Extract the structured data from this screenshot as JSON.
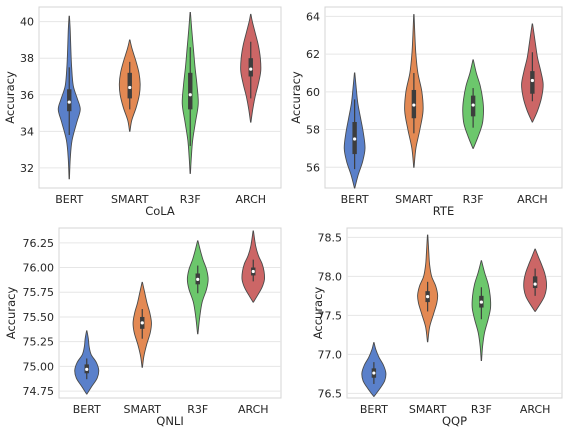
{
  "chart_data": [
    {
      "type": "violin",
      "xlabel": "CoLA",
      "ylabel": "Accuracy",
      "categories": [
        "BERT",
        "SMART",
        "R3F",
        "ARCH"
      ],
      "ylim": [
        30.9,
        40.8
      ],
      "yticks": [
        32,
        34,
        36,
        38,
        40
      ],
      "tick_decimals": 0,
      "grid": true,
      "colors": [
        "#5a80ca",
        "#e38953",
        "#6cc76c",
        "#cc6666"
      ],
      "violins": [
        {
          "min": 31.4,
          "max": 40.3,
          "q1": 35.1,
          "median": 35.6,
          "q3": 36.3,
          "whisker_low": 33.8,
          "whisker_high": 37.5,
          "profile": [
            [
              31.4,
              0.01
            ],
            [
              32.5,
              0.05
            ],
            [
              33.5,
              0.14
            ],
            [
              34.5,
              0.38
            ],
            [
              35.2,
              0.55
            ],
            [
              35.8,
              0.4
            ],
            [
              36.5,
              0.2
            ],
            [
              37.5,
              0.12
            ],
            [
              38.5,
              0.08
            ],
            [
              39.5,
              0.05
            ],
            [
              40.3,
              0.01
            ]
          ]
        },
        {
          "min": 34.0,
          "max": 39.0,
          "q1": 35.8,
          "median": 36.4,
          "q3": 37.2,
          "whisker_low": 35.2,
          "whisker_high": 37.8,
          "profile": [
            [
              34.0,
              0.01
            ],
            [
              34.6,
              0.1
            ],
            [
              35.3,
              0.32
            ],
            [
              36.0,
              0.48
            ],
            [
              36.6,
              0.52
            ],
            [
              37.2,
              0.46
            ],
            [
              37.8,
              0.32
            ],
            [
              38.5,
              0.12
            ],
            [
              39.0,
              0.01
            ]
          ]
        },
        {
          "min": 31.7,
          "max": 40.5,
          "q1": 35.2,
          "median": 36.0,
          "q3": 37.2,
          "whisker_low": 33.2,
          "whisker_high": 38.6,
          "profile": [
            [
              31.7,
              0.01
            ],
            [
              32.5,
              0.05
            ],
            [
              33.5,
              0.12
            ],
            [
              34.5,
              0.26
            ],
            [
              35.5,
              0.4
            ],
            [
              36.5,
              0.34
            ],
            [
              37.5,
              0.24
            ],
            [
              38.5,
              0.16
            ],
            [
              39.5,
              0.08
            ],
            [
              40.5,
              0.01
            ]
          ]
        },
        {
          "min": 34.5,
          "max": 40.4,
          "q1": 37.0,
          "median": 37.4,
          "q3": 38.0,
          "whisker_low": 35.8,
          "whisker_high": 38.9,
          "profile": [
            [
              34.5,
              0.01
            ],
            [
              35.2,
              0.1
            ],
            [
              35.9,
              0.22
            ],
            [
              36.6,
              0.38
            ],
            [
              37.3,
              0.5
            ],
            [
              38.0,
              0.48
            ],
            [
              38.7,
              0.38
            ],
            [
              39.4,
              0.22
            ],
            [
              40.0,
              0.08
            ],
            [
              40.4,
              0.01
            ]
          ]
        }
      ]
    },
    {
      "type": "violin",
      "xlabel": "RTE",
      "ylabel": "Accuracy",
      "categories": [
        "BERT",
        "SMART",
        "R3F",
        "ARCH"
      ],
      "ylim": [
        54.9,
        64.5
      ],
      "yticks": [
        56,
        58,
        60,
        62,
        64
      ],
      "tick_decimals": 0,
      "grid": true,
      "colors": [
        "#5a80ca",
        "#e38953",
        "#6cc76c",
        "#cc6666"
      ],
      "violins": [
        {
          "min": 54.9,
          "max": 61.0,
          "q1": 56.7,
          "median": 57.5,
          "q3": 58.4,
          "whisker_low": 55.9,
          "whisker_high": 59.6,
          "profile": [
            [
              54.9,
              0.01
            ],
            [
              55.6,
              0.18
            ],
            [
              56.3,
              0.4
            ],
            [
              57.0,
              0.52
            ],
            [
              57.8,
              0.44
            ],
            [
              58.6,
              0.3
            ],
            [
              59.4,
              0.16
            ],
            [
              60.2,
              0.08
            ],
            [
              61.0,
              0.01
            ]
          ]
        },
        {
          "min": 56.0,
          "max": 64.1,
          "q1": 58.6,
          "median": 59.3,
          "q3": 60.1,
          "whisker_low": 57.8,
          "whisker_high": 61.0,
          "profile": [
            [
              56.0,
              0.01
            ],
            [
              57.0,
              0.1
            ],
            [
              58.0,
              0.3
            ],
            [
              59.0,
              0.46
            ],
            [
              60.0,
              0.4
            ],
            [
              61.0,
              0.2
            ],
            [
              62.0,
              0.1
            ],
            [
              63.0,
              0.05
            ],
            [
              64.1,
              0.01
            ]
          ]
        },
        {
          "min": 57.0,
          "max": 61.7,
          "q1": 58.7,
          "median": 59.3,
          "q3": 59.8,
          "whisker_low": 58.1,
          "whisker_high": 60.2,
          "profile": [
            [
              57.0,
              0.01
            ],
            [
              57.6,
              0.24
            ],
            [
              58.3,
              0.46
            ],
            [
              59.0,
              0.52
            ],
            [
              59.6,
              0.48
            ],
            [
              60.3,
              0.36
            ],
            [
              61.0,
              0.16
            ],
            [
              61.7,
              0.01
            ]
          ]
        },
        {
          "min": 58.4,
          "max": 63.6,
          "q1": 59.9,
          "median": 60.6,
          "q3": 61.1,
          "whisker_low": 59.5,
          "whisker_high": 62.1,
          "profile": [
            [
              58.4,
              0.01
            ],
            [
              59.0,
              0.26
            ],
            [
              59.7,
              0.46
            ],
            [
              60.4,
              0.54
            ],
            [
              61.1,
              0.42
            ],
            [
              61.8,
              0.26
            ],
            [
              62.5,
              0.16
            ],
            [
              63.1,
              0.08
            ],
            [
              63.6,
              0.01
            ]
          ]
        }
      ]
    },
    {
      "type": "violin",
      "xlabel": "QNLI",
      "ylabel": "Accuracy",
      "categories": [
        "BERT",
        "SMART",
        "R3F",
        "ARCH"
      ],
      "ylim": [
        74.68,
        76.4
      ],
      "yticks": [
        74.75,
        75.0,
        75.25,
        75.5,
        75.75,
        76.0,
        76.25
      ],
      "tick_decimals": 2,
      "grid": true,
      "colors": [
        "#5a80ca",
        "#e38953",
        "#6cc76c",
        "#cc6666"
      ],
      "violins": [
        {
          "min": 74.72,
          "max": 75.36,
          "q1": 74.93,
          "median": 74.97,
          "q3": 75.02,
          "whisker_low": 74.87,
          "whisker_high": 75.08,
          "profile": [
            [
              74.72,
              0.01
            ],
            [
              74.8,
              0.26
            ],
            [
              74.88,
              0.52
            ],
            [
              74.96,
              0.6
            ],
            [
              75.04,
              0.48
            ],
            [
              75.12,
              0.22
            ],
            [
              75.2,
              0.12
            ],
            [
              75.28,
              0.08
            ],
            [
              75.36,
              0.01
            ]
          ]
        },
        {
          "min": 74.99,
          "max": 75.85,
          "q1": 75.38,
          "median": 75.44,
          "q3": 75.5,
          "whisker_low": 75.28,
          "whisker_high": 75.58,
          "profile": [
            [
              74.99,
              0.01
            ],
            [
              75.1,
              0.08
            ],
            [
              75.22,
              0.22
            ],
            [
              75.34,
              0.4
            ],
            [
              75.44,
              0.46
            ],
            [
              75.54,
              0.38
            ],
            [
              75.64,
              0.24
            ],
            [
              75.75,
              0.12
            ],
            [
              75.85,
              0.01
            ]
          ]
        },
        {
          "min": 75.33,
          "max": 76.27,
          "q1": 75.83,
          "median": 75.88,
          "q3": 75.94,
          "whisker_low": 75.74,
          "whisker_high": 76.02,
          "profile": [
            [
              75.33,
              0.01
            ],
            [
              75.5,
              0.1
            ],
            [
              75.65,
              0.22
            ],
            [
              75.78,
              0.44
            ],
            [
              75.88,
              0.52
            ],
            [
              75.98,
              0.44
            ],
            [
              76.08,
              0.26
            ],
            [
              76.18,
              0.12
            ],
            [
              76.27,
              0.01
            ]
          ]
        },
        {
          "min": 75.65,
          "max": 76.37,
          "q1": 75.92,
          "median": 75.96,
          "q3": 76.0,
          "whisker_low": 75.86,
          "whisker_high": 76.08,
          "profile": [
            [
              75.65,
              0.01
            ],
            [
              75.72,
              0.22
            ],
            [
              75.8,
              0.44
            ],
            [
              75.88,
              0.56
            ],
            [
              75.96,
              0.54
            ],
            [
              76.04,
              0.44
            ],
            [
              76.12,
              0.26
            ],
            [
              76.22,
              0.12
            ],
            [
              76.37,
              0.01
            ]
          ]
        }
      ]
    },
    {
      "type": "violin",
      "xlabel": "QQP",
      "ylabel": "Accuracy",
      "categories": [
        "BERT",
        "SMART",
        "R3F",
        "ARCH"
      ],
      "ylim": [
        76.44,
        78.62
      ],
      "yticks": [
        76.5,
        77.0,
        77.5,
        78.0,
        78.5
      ],
      "tick_decimals": 1,
      "grid": true,
      "colors": [
        "#5a80ca",
        "#e38953",
        "#6cc76c",
        "#cc6666"
      ],
      "violins": [
        {
          "min": 76.46,
          "max": 77.15,
          "q1": 76.7,
          "median": 76.76,
          "q3": 76.82,
          "whisker_low": 76.62,
          "whisker_high": 76.9,
          "profile": [
            [
              76.46,
              0.01
            ],
            [
              76.56,
              0.3
            ],
            [
              76.66,
              0.54
            ],
            [
              76.76,
              0.6
            ],
            [
              76.86,
              0.48
            ],
            [
              76.96,
              0.26
            ],
            [
              77.06,
              0.1
            ],
            [
              77.15,
              0.01
            ]
          ]
        },
        {
          "min": 77.16,
          "max": 78.53,
          "q1": 77.67,
          "median": 77.74,
          "q3": 77.81,
          "whisker_low": 77.55,
          "whisker_high": 77.93,
          "profile": [
            [
              77.16,
              0.01
            ],
            [
              77.35,
              0.1
            ],
            [
              77.52,
              0.3
            ],
            [
              77.66,
              0.46
            ],
            [
              77.76,
              0.5
            ],
            [
              77.88,
              0.4
            ],
            [
              78.0,
              0.2
            ],
            [
              78.15,
              0.1
            ],
            [
              78.3,
              0.06
            ],
            [
              78.53,
              0.01
            ]
          ]
        },
        {
          "min": 76.92,
          "max": 78.2,
          "q1": 77.6,
          "median": 77.67,
          "q3": 77.75,
          "whisker_low": 77.45,
          "whisker_high": 77.86,
          "profile": [
            [
              76.92,
              0.01
            ],
            [
              77.1,
              0.06
            ],
            [
              77.28,
              0.16
            ],
            [
              77.45,
              0.34
            ],
            [
              77.6,
              0.46
            ],
            [
              77.75,
              0.44
            ],
            [
              77.9,
              0.34
            ],
            [
              78.05,
              0.16
            ],
            [
              78.2,
              0.01
            ]
          ]
        },
        {
          "min": 77.55,
          "max": 78.35,
          "q1": 77.85,
          "median": 77.9,
          "q3": 78.0,
          "whisker_low": 77.75,
          "whisker_high": 78.1,
          "profile": [
            [
              77.55,
              0.01
            ],
            [
              77.64,
              0.24
            ],
            [
              77.74,
              0.46
            ],
            [
              77.84,
              0.56
            ],
            [
              77.94,
              0.56
            ],
            [
              78.04,
              0.48
            ],
            [
              78.14,
              0.34
            ],
            [
              78.24,
              0.18
            ],
            [
              78.35,
              0.01
            ]
          ]
        }
      ]
    }
  ]
}
